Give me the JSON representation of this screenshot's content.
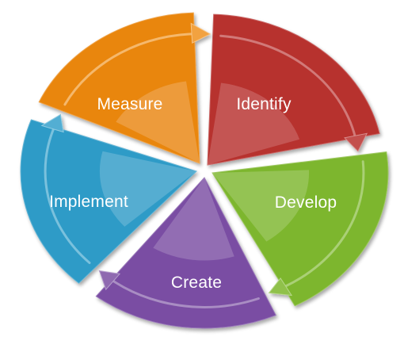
{
  "diagram": {
    "segments": [
      {
        "id": "identify",
        "label": "Identify",
        "color": "#b7302e",
        "arrow_color": "#b8312f"
      },
      {
        "id": "develop",
        "label": "Develop",
        "color": "#7db62d",
        "arrow_color": "#7cb62c"
      },
      {
        "id": "create",
        "label": "Create",
        "color": "#7a4ea3",
        "arrow_color": "#7b4fa2"
      },
      {
        "id": "implement",
        "label": "Implement",
        "color": "#2f9bc7",
        "arrow_color": "#33a0cb"
      },
      {
        "id": "measure",
        "label": "Measure",
        "color": "#e9860f",
        "arrow_color": "#f0921d"
      }
    ]
  }
}
